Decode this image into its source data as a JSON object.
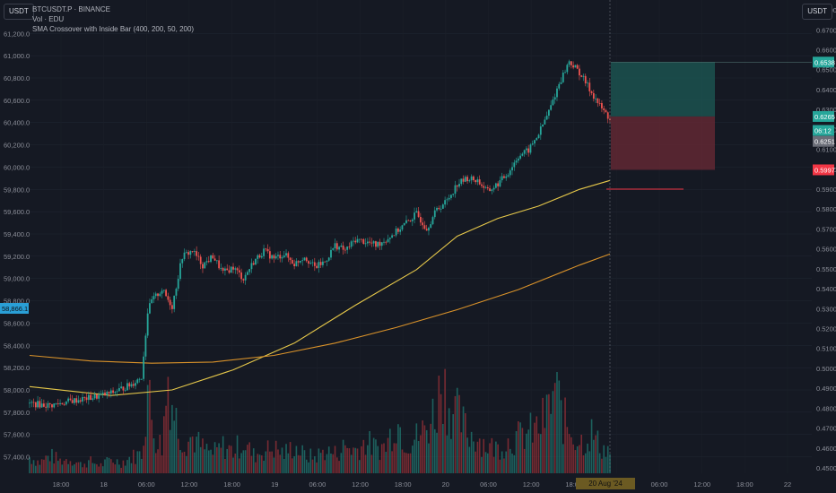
{
  "header": {
    "symbol": "BTCUSDT.P · BINANCE",
    "volume": "Vol · EDU",
    "indicator": "SMA Crossover with Inside Bar (400, 200, 50, 200)",
    "currency_badge_left": "USDT",
    "currency_badge_right": "USDT"
  },
  "crosshair": {
    "price_label": "58,866.1",
    "date_label": "20 Aug '24"
  },
  "chart_data": {
    "type": "candlestick",
    "left_axis": {
      "ticks": [
        "61,200.0",
        "61,000.0",
        "60,800.0",
        "60,600.0",
        "60,400.0",
        "60,200.0",
        "60,000.0",
        "59,800.0",
        "59,600.0",
        "59,400.0",
        "59,200.0",
        "59,000.0",
        "58,800.0",
        "58,600.0",
        "58,400.0",
        "58,200.0",
        "58,000.0",
        "57,800.0",
        "57,600.0",
        "57,400.0"
      ],
      "range": [
        57300,
        61500
      ]
    },
    "right_axis": {
      "ticks": [
        "0.6800",
        "0.6700",
        "0.6600",
        "0.6500",
        "0.6400",
        "0.6300",
        "0.6200",
        "0.6100",
        "0.6000",
        "0.5900",
        "0.5800",
        "0.5700",
        "0.5600",
        "0.5500",
        "0.5400",
        "0.5300",
        "0.5200",
        "0.5100",
        "0.5000",
        "0.4900",
        "0.4800",
        "0.4700",
        "0.4600",
        "0.4500"
      ],
      "range": [
        0.45,
        0.685
      ],
      "labels": [
        {
          "text": "0.6538",
          "value": 0.6538,
          "color": "#26a69a"
        },
        {
          "text": "0.6265",
          "value": 0.6265,
          "color": "#26a69a"
        },
        {
          "text": "06:12",
          "value": 0.6195,
          "color": "#26a69a"
        },
        {
          "text": "0.6251",
          "value": 0.614,
          "color": "#6b6e78"
        },
        {
          "text": "0.5997",
          "value": 0.5997,
          "color": "#f23645"
        }
      ]
    },
    "x_axis": {
      "ticks": [
        "18:00",
        "18",
        "06:00",
        "12:00",
        "18:00",
        "19",
        "06:00",
        "12:00",
        "18:00",
        "20",
        "06:00",
        "12:00",
        "18:00",
        "21",
        "06:00",
        "12:00",
        "18:00",
        "22"
      ]
    },
    "price_path": [
      [
        0,
        57880
      ],
      [
        10,
        57860
      ],
      [
        20,
        57900
      ],
      [
        30,
        57930
      ],
      [
        40,
        57970
      ],
      [
        50,
        58050
      ],
      [
        55,
        58120
      ],
      [
        58,
        58700
      ],
      [
        60,
        58800
      ],
      [
        65,
        58900
      ],
      [
        70,
        58750
      ],
      [
        75,
        59200
      ],
      [
        80,
        59250
      ],
      [
        85,
        59120
      ],
      [
        90,
        59200
      ],
      [
        95,
        59050
      ],
      [
        100,
        59100
      ],
      [
        105,
        59000
      ],
      [
        110,
        59150
      ],
      [
        115,
        59250
      ],
      [
        120,
        59180
      ],
      [
        125,
        59220
      ],
      [
        130,
        59130
      ],
      [
        135,
        59200
      ],
      [
        140,
        59100
      ],
      [
        145,
        59150
      ],
      [
        150,
        59300
      ],
      [
        155,
        59250
      ],
      [
        160,
        59350
      ],
      [
        165,
        59330
      ],
      [
        170,
        59300
      ],
      [
        175,
        59350
      ],
      [
        180,
        59420
      ],
      [
        185,
        59500
      ],
      [
        190,
        59580
      ],
      [
        195,
        59450
      ],
      [
        200,
        59620
      ],
      [
        205,
        59700
      ],
      [
        210,
        59850
      ],
      [
        215,
        59900
      ],
      [
        220,
        59880
      ],
      [
        225,
        59780
      ],
      [
        230,
        59850
      ],
      [
        235,
        59950
      ],
      [
        240,
        60100
      ],
      [
        245,
        60150
      ],
      [
        250,
        60300
      ],
      [
        255,
        60500
      ],
      [
        260,
        60750
      ],
      [
        265,
        60950
      ],
      [
        270,
        60850
      ],
      [
        275,
        60700
      ],
      [
        280,
        60550
      ],
      [
        285,
        60430
      ]
    ],
    "volume_path": [
      [
        0,
        18
      ],
      [
        5,
        12
      ],
      [
        10,
        20
      ],
      [
        15,
        14
      ],
      [
        20,
        16
      ],
      [
        25,
        10
      ],
      [
        30,
        13
      ],
      [
        35,
        9
      ],
      [
        40,
        15
      ],
      [
        45,
        12
      ],
      [
        50,
        18
      ],
      [
        55,
        22
      ],
      [
        57,
        70
      ],
      [
        58,
        95
      ],
      [
        60,
        60
      ],
      [
        62,
        40
      ],
      [
        65,
        30
      ],
      [
        68,
        110
      ],
      [
        70,
        80
      ],
      [
        73,
        50
      ],
      [
        76,
        35
      ],
      [
        80,
        40
      ],
      [
        85,
        28
      ],
      [
        90,
        22
      ],
      [
        95,
        30
      ],
      [
        100,
        25
      ],
      [
        105,
        35
      ],
      [
        110,
        20
      ],
      [
        115,
        25
      ],
      [
        120,
        28
      ],
      [
        125,
        22
      ],
      [
        130,
        30
      ],
      [
        135,
        20
      ],
      [
        140,
        18
      ],
      [
        145,
        25
      ],
      [
        150,
        22
      ],
      [
        155,
        30
      ],
      [
        160,
        26
      ],
      [
        165,
        35
      ],
      [
        170,
        28
      ],
      [
        175,
        30
      ],
      [
        180,
        60
      ],
      [
        185,
        35
      ],
      [
        190,
        40
      ],
      [
        195,
        50
      ],
      [
        200,
        75
      ],
      [
        203,
        110
      ],
      [
        205,
        80
      ],
      [
        210,
        65
      ],
      [
        215,
        45
      ],
      [
        220,
        40
      ],
      [
        225,
        30
      ],
      [
        230,
        28
      ],
      [
        235,
        35
      ],
      [
        240,
        40
      ],
      [
        245,
        45
      ],
      [
        250,
        50
      ],
      [
        255,
        70
      ],
      [
        258,
        95
      ],
      [
        262,
        60
      ],
      [
        265,
        50
      ],
      [
        268,
        40
      ],
      [
        272,
        35
      ],
      [
        276,
        45
      ],
      [
        280,
        30
      ],
      [
        284,
        25
      ]
    ],
    "series": [
      {
        "kind": "sma",
        "color": "#e6c84a",
        "points": [
          [
            0,
            58030
          ],
          [
            40,
            57950
          ],
          [
            70,
            58000
          ],
          [
            100,
            58180
          ],
          [
            130,
            58420
          ],
          [
            160,
            58760
          ],
          [
            190,
            59080
          ],
          [
            210,
            59380
          ],
          [
            230,
            59540
          ],
          [
            250,
            59650
          ],
          [
            270,
            59800
          ],
          [
            285,
            59880
          ]
        ]
      },
      {
        "kind": "sma",
        "color": "#d9922a",
        "points": [
          [
            0,
            58310
          ],
          [
            30,
            58260
          ],
          [
            60,
            58240
          ],
          [
            90,
            58250
          ],
          [
            120,
            58310
          ],
          [
            150,
            58420
          ],
          [
            180,
            58560
          ],
          [
            210,
            58720
          ],
          [
            240,
            58900
          ],
          [
            270,
            59120
          ],
          [
            285,
            59220
          ]
        ]
      }
    ],
    "position_box": {
      "entry": 0.6265,
      "target": 0.6538,
      "stop": 0.5997,
      "stop_line": 0.59
    }
  }
}
